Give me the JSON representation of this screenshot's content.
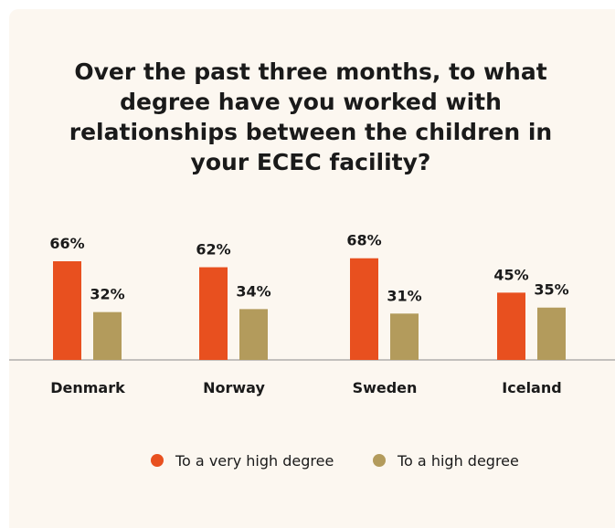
{
  "chart_data": {
    "type": "bar",
    "title": "Over the past three months, to what degree have you worked with relationships between the children in your ECEC facility?",
    "categories": [
      "Denmark",
      "Norway",
      "Sweden",
      "Iceland"
    ],
    "series": [
      {
        "name": "To a very high degree",
        "color": "#e8501f",
        "values": [
          66,
          62,
          68,
          45
        ],
        "value_labels": [
          "66%",
          "62%",
          "68%",
          "45%"
        ]
      },
      {
        "name": "To a high degree",
        "color": "#b39b5c",
        "values": [
          32,
          34,
          31,
          35
        ],
        "value_labels": [
          "32%",
          "34%",
          "31%",
          "35%"
        ]
      }
    ]
  }
}
